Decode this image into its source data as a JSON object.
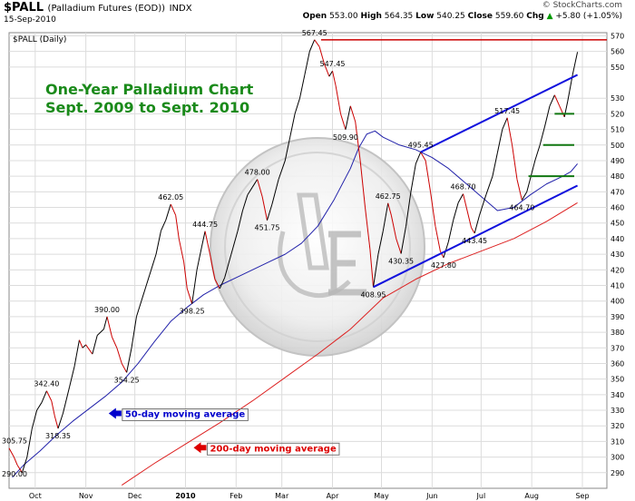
{
  "header": {
    "symbol": "$PALL",
    "name": "(Palladium Futures (EOD))",
    "exchange": "INDX",
    "date": "15-Sep-2010",
    "brand": "© StockCharts.com",
    "open_label": "Open",
    "open": "553.00",
    "high_label": "High",
    "high": "564.35",
    "low_label": "Low",
    "low": "540.25",
    "close_label": "Close",
    "close": "559.60",
    "chg_label": "Chg",
    "chg": "+5.80 (+1.05%)",
    "chg_arrow": "▲"
  },
  "chart_data": {
    "type": "line",
    "panel_label": "$PALL (Daily)",
    "title_lines": [
      "One-Year Palladium Chart",
      "Sept. 2009 to Sept. 2010"
    ],
    "title_color": "#1a8a1a",
    "x_ticks": [
      {
        "label": "Oct",
        "d": 7
      },
      {
        "label": "Nov",
        "d": 38
      },
      {
        "label": "Dec",
        "d": 68
      },
      {
        "label": "2010",
        "d": 99
      },
      {
        "label": "Feb",
        "d": 130
      },
      {
        "label": "Mar",
        "d": 158
      },
      {
        "label": "Apr",
        "d": 189
      },
      {
        "label": "May",
        "d": 219
      },
      {
        "label": "Jun",
        "d": 250
      },
      {
        "label": "Jul",
        "d": 280
      },
      {
        "label": "Aug",
        "d": 311
      },
      {
        "label": "Sep",
        "d": 342
      }
    ],
    "x_domain": [
      -9,
      357
    ],
    "y_domain": [
      280,
      572
    ],
    "y_ticks": [
      290,
      300,
      310,
      320,
      330,
      340,
      350,
      360,
      370,
      380,
      390,
      400,
      410,
      420,
      430,
      440,
      450,
      460,
      470,
      480,
      490,
      500,
      510,
      520,
      530,
      550,
      560,
      570
    ],
    "price": {
      "color_up": "#000000",
      "color_down": "#cc0000",
      "points": [
        [
          -9,
          305.75
        ],
        [
          -6,
          300
        ],
        [
          -4,
          295
        ],
        [
          -1,
          290
        ],
        [
          2,
          300
        ],
        [
          5,
          318
        ],
        [
          8,
          330
        ],
        [
          11,
          335
        ],
        [
          14,
          342.4
        ],
        [
          17,
          336
        ],
        [
          19,
          326
        ],
        [
          21,
          318.35
        ],
        [
          24,
          328
        ],
        [
          28,
          345
        ],
        [
          31,
          358
        ],
        [
          34,
          375
        ],
        [
          36,
          370
        ],
        [
          38,
          372
        ],
        [
          42,
          366
        ],
        [
          45,
          378
        ],
        [
          49,
          382
        ],
        [
          51,
          390
        ],
        [
          54,
          377
        ],
        [
          57,
          370
        ],
        [
          60,
          360
        ],
        [
          63,
          354.25
        ],
        [
          66,
          370
        ],
        [
          69,
          390
        ],
        [
          72,
          400
        ],
        [
          75,
          410
        ],
        [
          78,
          420
        ],
        [
          81,
          430
        ],
        [
          84,
          445
        ],
        [
          87,
          452
        ],
        [
          90,
          462.05
        ],
        [
          93,
          455
        ],
        [
          95,
          440
        ],
        [
          98,
          425
        ],
        [
          100,
          408
        ],
        [
          103,
          398.25
        ],
        [
          106,
          420
        ],
        [
          109,
          435
        ],
        [
          111,
          444.75
        ],
        [
          114,
          430
        ],
        [
          117,
          414
        ],
        [
          120,
          408
        ],
        [
          123,
          415
        ],
        [
          127,
          430
        ],
        [
          131,
          445
        ],
        [
          134,
          458
        ],
        [
          137,
          468
        ],
        [
          140,
          473
        ],
        [
          143,
          478
        ],
        [
          146,
          467
        ],
        [
          149,
          451.75
        ],
        [
          152,
          462
        ],
        [
          156,
          478
        ],
        [
          160,
          490
        ],
        [
          163,
          505
        ],
        [
          166,
          520
        ],
        [
          169,
          530
        ],
        [
          172,
          545
        ],
        [
          175,
          560
        ],
        [
          178,
          567.45
        ],
        [
          181,
          563
        ],
        [
          184,
          552
        ],
        [
          187,
          544
        ],
        [
          189,
          547.45
        ],
        [
          191,
          538
        ],
        [
          194,
          520
        ],
        [
          197,
          509.9
        ],
        [
          200,
          525
        ],
        [
          203,
          515
        ],
        [
          206,
          490
        ],
        [
          209,
          460
        ],
        [
          212,
          433
        ],
        [
          214,
          408.95
        ],
        [
          217,
          430
        ],
        [
          220,
          445
        ],
        [
          223,
          462.75
        ],
        [
          225,
          455
        ],
        [
          228,
          440
        ],
        [
          231,
          430.35
        ],
        [
          234,
          448
        ],
        [
          237,
          470
        ],
        [
          240,
          488
        ],
        [
          243,
          495.45
        ],
        [
          246,
          490
        ],
        [
          249,
          470
        ],
        [
          252,
          448
        ],
        [
          255,
          432
        ],
        [
          257,
          427.8
        ],
        [
          260,
          438
        ],
        [
          263,
          452
        ],
        [
          266,
          463
        ],
        [
          269,
          468.7
        ],
        [
          271,
          460
        ],
        [
          274,
          447
        ],
        [
          276,
          443.45
        ],
        [
          279,
          455
        ],
        [
          283,
          468
        ],
        [
          287,
          480
        ],
        [
          290,
          495
        ],
        [
          293,
          510
        ],
        [
          296,
          517.45
        ],
        [
          299,
          500
        ],
        [
          302,
          478
        ],
        [
          305,
          464.7
        ],
        [
          308,
          470
        ],
        [
          311,
          482
        ],
        [
          313,
          490
        ],
        [
          316,
          500
        ],
        [
          319,
          512
        ],
        [
          322,
          525
        ],
        [
          325,
          532
        ],
        [
          328,
          525
        ],
        [
          331,
          518
        ],
        [
          333,
          528
        ],
        [
          336,
          545
        ],
        [
          339,
          559.6
        ]
      ]
    },
    "ma50": {
      "color": "#2222aa",
      "points": [
        [
          -7,
          287
        ],
        [
          0,
          295
        ],
        [
          10,
          304
        ],
        [
          20,
          314
        ],
        [
          30,
          323
        ],
        [
          40,
          331
        ],
        [
          50,
          339
        ],
        [
          60,
          348
        ],
        [
          70,
          360
        ],
        [
          80,
          374
        ],
        [
          90,
          387
        ],
        [
          100,
          396
        ],
        [
          110,
          404
        ],
        [
          120,
          410
        ],
        [
          130,
          415
        ],
        [
          140,
          420
        ],
        [
          150,
          425
        ],
        [
          160,
          430
        ],
        [
          170,
          437
        ],
        [
          180,
          448
        ],
        [
          190,
          465
        ],
        [
          200,
          485
        ],
        [
          205,
          498
        ],
        [
          210,
          507
        ],
        [
          215,
          509
        ],
        [
          220,
          505
        ],
        [
          230,
          500
        ],
        [
          240,
          497
        ],
        [
          250,
          492
        ],
        [
          260,
          485
        ],
        [
          270,
          476
        ],
        [
          280,
          467
        ],
        [
          290,
          458
        ],
        [
          300,
          460
        ],
        [
          310,
          468
        ],
        [
          320,
          475
        ],
        [
          330,
          480
        ],
        [
          335,
          483
        ],
        [
          339,
          488
        ]
      ]
    },
    "ma200": {
      "color": "#dd2222",
      "points": [
        [
          60,
          282
        ],
        [
          80,
          296
        ],
        [
          100,
          309
        ],
        [
          120,
          322
        ],
        [
          140,
          336
        ],
        [
          160,
          351
        ],
        [
          180,
          366
        ],
        [
          200,
          382
        ],
        [
          210,
          392
        ],
        [
          220,
          402
        ],
        [
          240,
          414
        ],
        [
          260,
          424
        ],
        [
          280,
          432
        ],
        [
          300,
          440
        ],
        [
          320,
          451
        ],
        [
          339,
          463
        ]
      ]
    },
    "resistance": {
      "value": 567.45,
      "from": 182,
      "to": 357,
      "color": "#cc0000"
    },
    "support_levels": {
      "color": "#117711",
      "levels": [
        [
          325,
          337,
          520
        ],
        [
          318,
          337,
          500
        ],
        [
          309,
          337,
          480
        ]
      ]
    },
    "channel": {
      "color": "#1111dd",
      "upper": [
        [
          243,
          495.45
        ],
        [
          339,
          545
        ]
      ],
      "lower": [
        [
          214,
          408.95
        ],
        [
          339,
          474
        ]
      ]
    },
    "annotations": [
      {
        "label": "305.75",
        "d": -9,
        "v": 305.75
      },
      {
        "label": "290.00",
        "d": -1,
        "v": 290
      },
      {
        "label": "342.40",
        "d": 14,
        "v": 342.4
      },
      {
        "label": "318.35",
        "d": 21,
        "v": 318.35
      },
      {
        "label": "390.00",
        "d": 51,
        "v": 390
      },
      {
        "label": "354.25",
        "d": 63,
        "v": 354.25
      },
      {
        "label": "462.05",
        "d": 90,
        "v": 462.05
      },
      {
        "label": "444.75",
        "d": 111,
        "v": 444.75
      },
      {
        "label": "398.25",
        "d": 103,
        "v": 398.25
      },
      {
        "label": "478.00",
        "d": 143,
        "v": 478
      },
      {
        "label": "451.75",
        "d": 149,
        "v": 451.75
      },
      {
        "label": "567.45",
        "d": 178,
        "v": 567.45
      },
      {
        "label": "547.45",
        "d": 189,
        "v": 547.45
      },
      {
        "label": "509.90",
        "d": 197,
        "v": 509.9
      },
      {
        "label": "408.95",
        "d": 214,
        "v": 408.95
      },
      {
        "label": "462.75",
        "d": 223,
        "v": 462.75
      },
      {
        "label": "430.35",
        "d": 231,
        "v": 430.35
      },
      {
        "label": "495.45",
        "d": 243,
        "v": 495.45
      },
      {
        "label": "427.80",
        "d": 257,
        "v": 427.8
      },
      {
        "label": "468.70",
        "d": 269,
        "v": 468.7
      },
      {
        "label": "443.45",
        "d": 276,
        "v": 443.45
      },
      {
        "label": "517.45",
        "d": 296,
        "v": 517.45
      },
      {
        "label": "464.70",
        "d": 305,
        "v": 464.7
      }
    ],
    "legend_50": {
      "label": "50-day moving average",
      "color": "#0000cc",
      "d": 52,
      "v": 328
    },
    "legend_200": {
      "label": "200-day moving average",
      "color": "#dd0000",
      "d": 104,
      "v": 306
    }
  }
}
